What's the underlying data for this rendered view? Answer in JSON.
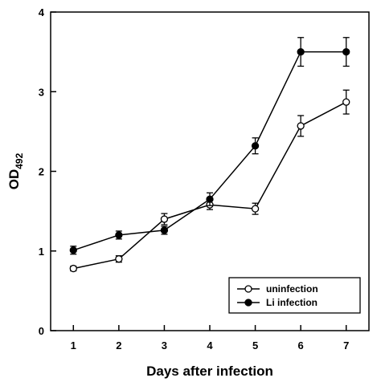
{
  "chart_data": {
    "type": "line",
    "title": "",
    "xlabel": "Days after infection",
    "ylabel_main": "OD",
    "ylabel_sub": "492",
    "x": [
      1,
      2,
      3,
      4,
      5,
      6,
      7
    ],
    "xlim": [
      0.5,
      7.5
    ],
    "ylim": [
      0,
      4
    ],
    "xticks": [
      1,
      2,
      3,
      4,
      5,
      6,
      7
    ],
    "yticks": [
      0,
      1,
      2,
      3,
      4
    ],
    "grid": false,
    "legend_position": "bottom-right",
    "series": [
      {
        "name": "uninfection",
        "marker": "open-circle",
        "values": [
          0.78,
          0.9,
          1.4,
          1.58,
          1.53,
          2.57,
          2.87
        ],
        "errors": [
          0.03,
          0.04,
          0.07,
          0.06,
          0.07,
          0.13,
          0.15
        ]
      },
      {
        "name": "Li infection",
        "marker": "filled-circle",
        "values": [
          1.01,
          1.2,
          1.26,
          1.65,
          2.32,
          3.5,
          3.5
        ],
        "errors": [
          0.05,
          0.05,
          0.05,
          0.08,
          0.1,
          0.18,
          0.18
        ]
      }
    ],
    "colors": {
      "line": "#000000",
      "marker_open_fill": "#ffffff",
      "marker_filled": "#000000"
    }
  }
}
